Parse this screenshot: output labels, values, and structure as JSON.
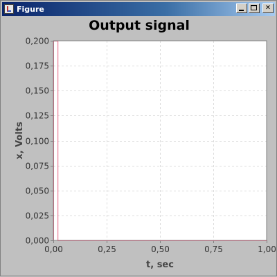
{
  "window": {
    "title": "Figure",
    "icon": "java-cup-icon",
    "buttons": [
      "minimize",
      "maximize",
      "close"
    ],
    "title_bar_color": "#0a246a"
  },
  "chart_data": {
    "type": "line",
    "title": "Output signal",
    "xlabel": "t, sec",
    "ylabel": "x, Volts",
    "xlim": [
      0,
      1
    ],
    "ylim": [
      0,
      0.2
    ],
    "grid": true,
    "x_ticks": [
      "0,00",
      "0,25",
      "0,50",
      "0,75",
      "1,00"
    ],
    "x_tick_values": [
      0,
      0.25,
      0.5,
      0.75,
      1
    ],
    "y_ticks": [
      "0,000",
      "0,025",
      "0,050",
      "0,075",
      "0,100",
      "0,125",
      "0,150",
      "0,175",
      "0,200"
    ],
    "y_tick_values": [
      0,
      0.025,
      0.05,
      0.075,
      0.1,
      0.125,
      0.15,
      0.175,
      0.2
    ],
    "series": [
      {
        "color": "#e86080",
        "x": [
          0,
          0,
          0.02,
          0.02,
          1
        ],
        "y": [
          0,
          0.2,
          0.2,
          0,
          0
        ]
      }
    ]
  }
}
